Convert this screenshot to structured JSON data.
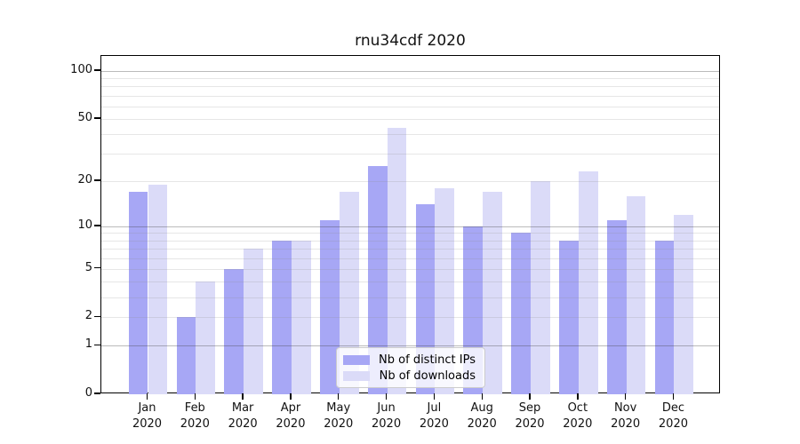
{
  "chart_data": {
    "type": "bar",
    "title": "rnu34cdf 2020",
    "categories": [
      "Jan",
      "Feb",
      "Mar",
      "Apr",
      "May",
      "Jun",
      "Jul",
      "Aug",
      "Sep",
      "Oct",
      "Nov",
      "Dec"
    ],
    "category_year": "2020",
    "series": [
      {
        "name": "Nb of distinct IPs",
        "color": "#a7a7f5",
        "values": [
          17,
          2,
          5,
          8,
          11,
          25,
          14,
          10,
          9,
          8,
          11,
          8
        ]
      },
      {
        "name": "Nb of downloads",
        "color": "#dbdbf8",
        "values": [
          19,
          4,
          7,
          8,
          17,
          44,
          18,
          17,
          20,
          23,
          16,
          12
        ]
      }
    ],
    "yscale": "log10(value+1)",
    "ylim": [
      0,
      123
    ],
    "y_tick_labels": [
      100,
      50,
      20,
      10,
      5,
      2,
      1,
      0
    ],
    "y_major_gridlines": [
      1,
      10,
      100
    ],
    "y_minor_gridlines": [
      2,
      3,
      4,
      5,
      6,
      7,
      8,
      9,
      20,
      30,
      40,
      50,
      60,
      70,
      80,
      90
    ],
    "grid": "horizontal",
    "legend_position": "inside lower-center"
  }
}
